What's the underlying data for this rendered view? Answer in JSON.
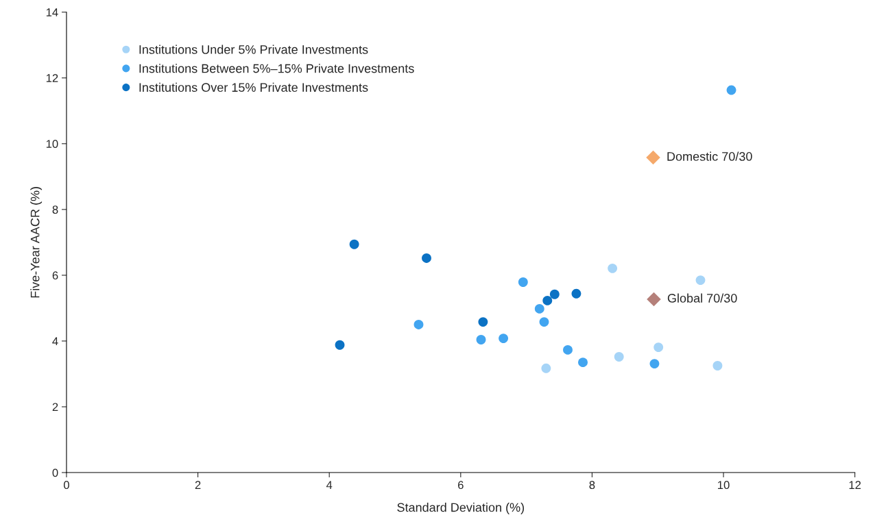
{
  "chart_data": {
    "type": "scatter",
    "xlabel": "Standard Deviation (%)",
    "ylabel": "Five-Year AACR (%)",
    "xlim": [
      0,
      12
    ],
    "xticks": [
      0,
      2,
      4,
      6,
      8,
      10,
      12
    ],
    "ylim": [
      0,
      14
    ],
    "yticks": [
      0,
      2,
      4,
      6,
      8,
      10,
      12,
      14
    ],
    "grid": false,
    "legend": "top left",
    "marker": "circle",
    "series": [
      {
        "name": "Institutions Under 5% Private Investments",
        "color": "#a6d4f7",
        "x": [
          8.31,
          9.65,
          9.01,
          8.41,
          7.3,
          9.91
        ],
        "values": [
          6.21,
          5.85,
          3.81,
          3.52,
          3.17,
          3.25
        ]
      },
      {
        "name": "Institutions Between 5%–15% Private Investments",
        "color": "#42a5f0",
        "x": [
          10.12,
          6.95,
          7.2,
          5.36,
          7.27,
          6.31,
          6.65,
          7.63,
          7.86,
          8.95
        ],
        "values": [
          11.63,
          5.79,
          4.98,
          4.5,
          4.58,
          4.04,
          4.08,
          3.73,
          3.35,
          3.31
        ]
      },
      {
        "name": "Institutions Over 15% Private Investments",
        "color": "#0b72c4",
        "x": [
          4.38,
          5.48,
          7.43,
          7.76,
          7.32,
          6.34,
          4.16
        ],
        "values": [
          6.94,
          6.52,
          5.42,
          5.44,
          5.23,
          4.58,
          3.88
        ]
      },
      {
        "name": "Domestic 70/30",
        "color": "#f5a96b",
        "marker": "diamond",
        "x": [
          8.93
        ],
        "values": [
          9.58
        ]
      },
      {
        "name": "Global 70/30",
        "color": "#b5807a",
        "marker": "diamond",
        "x": [
          8.94
        ],
        "values": [
          5.27
        ]
      }
    ]
  }
}
